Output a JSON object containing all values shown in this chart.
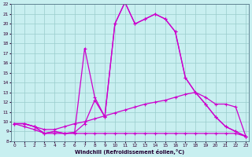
{
  "xlabel": "Windchill (Refroidissement éolien,°C)",
  "bg_color": "#c8eff0",
  "line_color": "#cc00cc",
  "grid_color": "#99cccc",
  "xlim_min": 0,
  "xlim_max": 23,
  "ylim_min": 8,
  "ylim_max": 22,
  "xticks": [
    0,
    1,
    2,
    3,
    4,
    5,
    6,
    7,
    8,
    9,
    10,
    11,
    12,
    13,
    14,
    15,
    16,
    17,
    18,
    19,
    20,
    21,
    22,
    23
  ],
  "yticks": [
    8,
    9,
    10,
    11,
    12,
    13,
    14,
    15,
    16,
    17,
    18,
    19,
    20,
    21,
    22
  ],
  "line1_x": [
    0,
    1,
    2,
    3,
    4,
    5,
    6,
    7,
    8,
    9,
    10,
    11,
    12,
    13,
    14,
    15,
    16,
    17,
    18,
    19,
    20,
    21,
    22,
    23
  ],
  "line1_y": [
    9.8,
    9.8,
    9.5,
    8.8,
    9.0,
    8.8,
    8.9,
    9.8,
    12.2,
    10.5,
    20.0,
    22.2,
    20.0,
    20.5,
    21.0,
    20.5,
    19.2,
    14.5,
    13.0,
    11.8,
    10.5,
    9.5,
    9.0,
    8.5
  ],
  "line2_x": [
    0,
    1,
    2,
    3,
    4,
    5,
    6,
    7,
    8,
    9,
    10,
    11,
    12,
    13,
    14,
    15,
    16,
    17,
    18,
    19,
    20,
    21,
    22,
    23
  ],
  "line2_y": [
    9.8,
    9.8,
    9.5,
    8.8,
    9.0,
    8.8,
    8.9,
    17.5,
    12.5,
    10.5,
    20.0,
    22.2,
    20.0,
    20.5,
    21.0,
    20.5,
    19.2,
    14.5,
    13.0,
    11.8,
    10.5,
    9.5,
    9.0,
    8.5
  ],
  "line3_x": [
    0,
    1,
    2,
    3,
    4,
    5,
    6,
    7,
    8,
    9,
    10,
    11,
    12,
    13,
    14,
    15,
    16,
    17,
    18,
    19,
    20,
    21,
    22,
    23
  ],
  "line3_y": [
    9.8,
    9.8,
    9.5,
    9.2,
    9.2,
    9.5,
    9.8,
    10.0,
    10.3,
    10.6,
    10.9,
    11.2,
    11.5,
    11.8,
    12.0,
    12.2,
    12.5,
    12.8,
    13.0,
    12.5,
    11.8,
    11.8,
    11.5,
    8.5
  ],
  "line4_x": [
    0,
    1,
    2,
    3,
    4,
    5,
    6,
    7,
    8,
    9,
    10,
    11,
    12,
    13,
    14,
    15,
    16,
    17,
    18,
    19,
    20,
    21,
    22,
    23
  ],
  "line4_y": [
    9.8,
    9.5,
    9.2,
    8.8,
    8.8,
    8.8,
    8.8,
    8.8,
    8.8,
    8.8,
    8.8,
    8.8,
    8.8,
    8.8,
    8.8,
    8.8,
    8.8,
    8.8,
    8.8,
    8.8,
    8.8,
    8.8,
    8.8,
    8.5
  ]
}
